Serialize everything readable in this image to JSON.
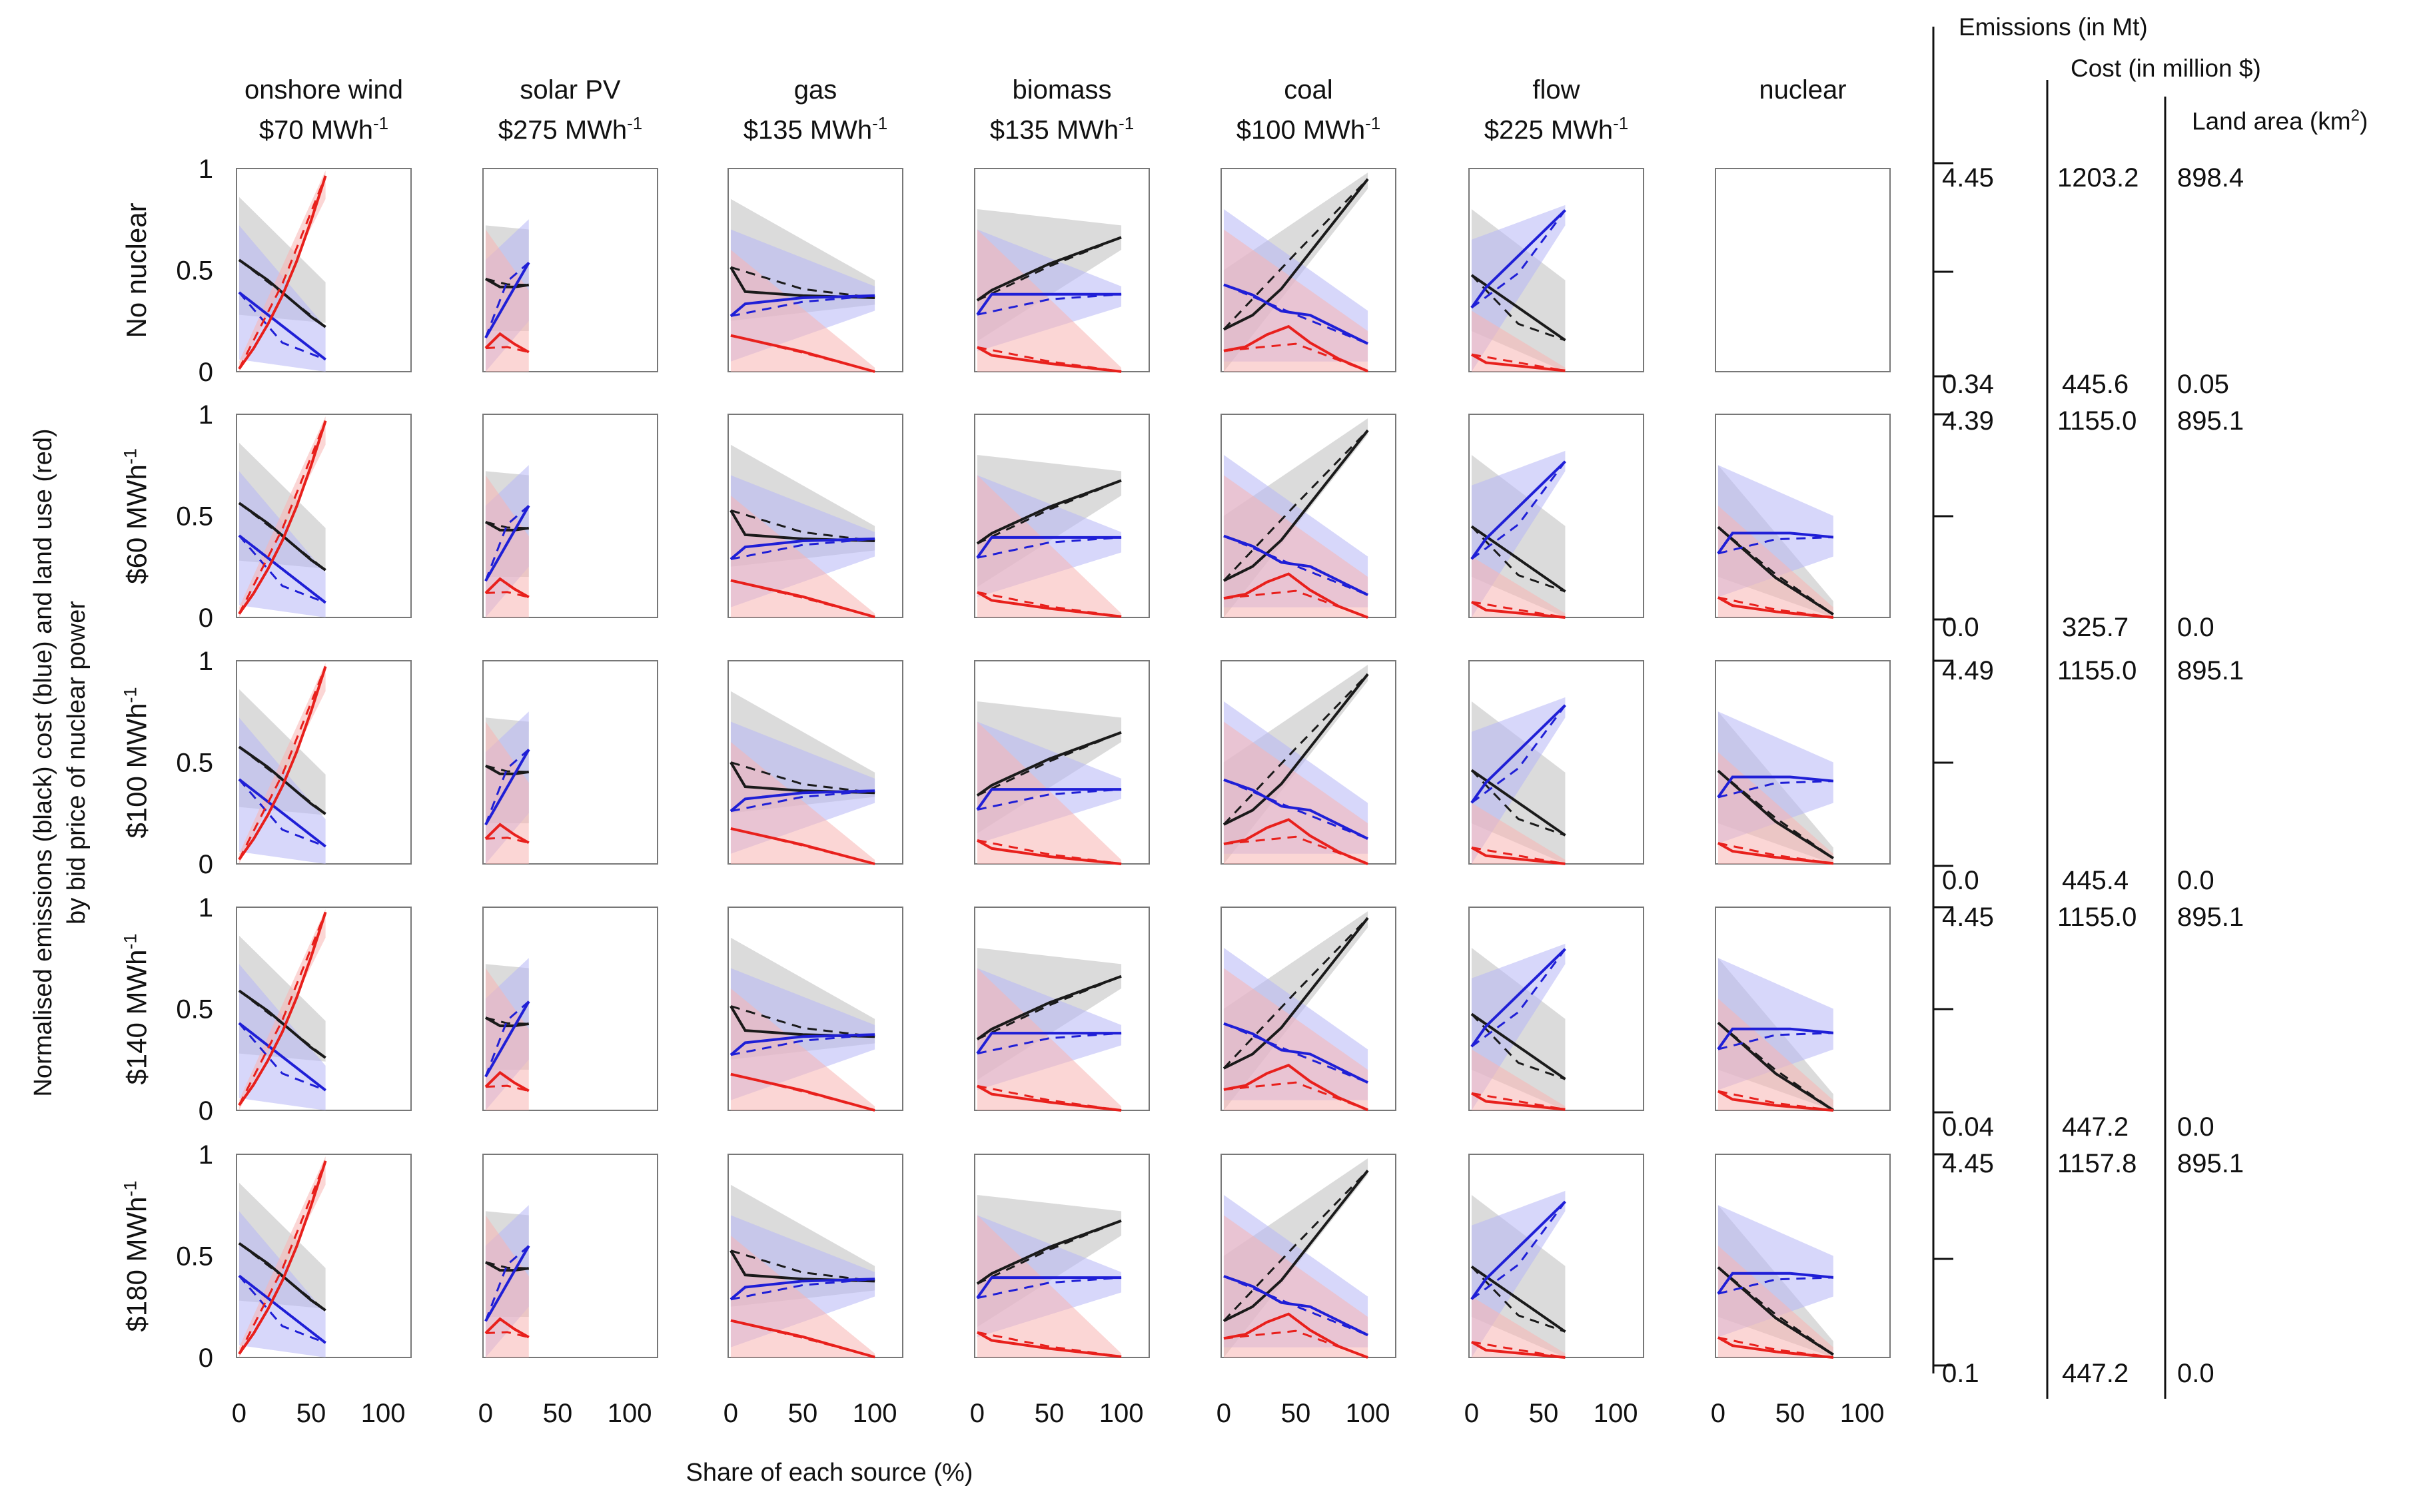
{
  "figure": {
    "y_axis_label_line1": "Normalised emissions (black) cost (blue) and land use (red)",
    "y_axis_label_line2": "by bid price of nuclear power",
    "x_axis_label": "Share of each source (%)"
  },
  "side_panel": {
    "emissions_header": "Emissions (in Mt)",
    "cost_header": "Cost (in million $)",
    "land_header_text": "Land area (km",
    "land_header_sup": "2",
    "land_header_close": ")"
  },
  "colors": {
    "emissions": "#1a1a1a",
    "cost": "#1f1fd6",
    "land": "#e8201c",
    "emissions_band": "#bdbdbd",
    "cost_band": "#b7b7f5",
    "land_band": "#f7b4b2"
  },
  "chart_data": {
    "type": "line",
    "title": "",
    "xlabel": "Share of each source (%)",
    "ylabel": "Normalised emissions (black) cost (blue) and land use (red) by bid price of nuclear power",
    "xlim": [
      0,
      100
    ],
    "ylim": [
      0,
      1
    ],
    "x_ticks": [
      "0",
      "50",
      "100"
    ],
    "y_ticks": [
      "0",
      "0.5",
      "1"
    ],
    "columns": [
      {
        "name": "onshore wind",
        "price": "$70 MWh",
        "unit_sup": "-1"
      },
      {
        "name": "solar PV",
        "price": "$275 MWh",
        "unit_sup": "-1"
      },
      {
        "name": "gas",
        "price": "$135 MWh",
        "unit_sup": "-1"
      },
      {
        "name": "biomass",
        "price": "$135 MWh",
        "unit_sup": "-1"
      },
      {
        "name": "coal",
        "price": "$100 MWh",
        "unit_sup": "-1"
      },
      {
        "name": "flow",
        "price": "$225 MWh",
        "unit_sup": "-1"
      },
      {
        "name": "nuclear",
        "price": "",
        "unit_sup": ""
      }
    ],
    "rows": [
      {
        "label": "No nuclear",
        "label_sup": "",
        "emissions_max": "4.45",
        "emissions_min": "0.34",
        "cost_max": "1203.2",
        "cost_min": "445.6",
        "land_max": "898.4",
        "land_min": "0.05"
      },
      {
        "label": "$60 MWh",
        "label_sup": "-1",
        "emissions_max": "4.39",
        "emissions_min": "0.0",
        "cost_max": "1155.0",
        "cost_min": "325.7",
        "land_max": "895.1",
        "land_min": "0.0"
      },
      {
        "label": "$100 MWh",
        "label_sup": "-1",
        "emissions_max": "4.49",
        "emissions_min": "0.0",
        "cost_max": "1155.0",
        "cost_min": "445.4",
        "land_max": "895.1",
        "land_min": "0.0"
      },
      {
        "label": "$140 MWh",
        "label_sup": "-1",
        "emissions_max": "4.45",
        "emissions_min": "0.04",
        "cost_max": "1155.0",
        "cost_min": "447.2",
        "land_max": "895.1",
        "land_min": "0.0"
      },
      {
        "label": "$180 MWh",
        "label_sup": "-1",
        "emissions_max": "4.45",
        "emissions_min": "0.1",
        "cost_max": "1157.8",
        "cost_min": "447.2",
        "land_max": "895.1",
        "land_min": "0.0"
      }
    ],
    "panels": {
      "onshore wind": {
        "emissions": {
          "x": [
            0,
            10,
            20,
            30,
            40,
            50,
            60
          ],
          "y": [
            0.57,
            0.52,
            0.47,
            0.41,
            0.35,
            0.29,
            0.24
          ]
        },
        "cost": {
          "x": [
            0,
            60
          ],
          "y": [
            0.41,
            0.08
          ]
        },
        "land": {
          "x": [
            0,
            10,
            20,
            30,
            40,
            50,
            60
          ],
          "y": [
            0.02,
            0.12,
            0.24,
            0.38,
            0.55,
            0.75,
            0.97
          ]
        },
        "emissions_band": {
          "lo": [
            0.28,
            0.24
          ],
          "hi": [
            0.86,
            0.44
          ]
        },
        "cost_band": {
          "lo": [
            0.06,
            0.0
          ],
          "hi": [
            0.72,
            0.22
          ]
        },
        "land_band": {
          "lo": [
            0.0,
            0.85
          ],
          "hi": [
            0.05,
            0.99
          ]
        }
      },
      "solar PV": {
        "emissions": {
          "x": [
            0,
            10,
            20,
            30
          ],
          "y": [
            0.47,
            0.43,
            0.43,
            0.44
          ]
        },
        "cost": {
          "x": [
            0,
            30
          ],
          "y": [
            0.18,
            0.55
          ]
        },
        "land": {
          "x": [
            0,
            10,
            20,
            30
          ],
          "y": [
            0.12,
            0.19,
            0.14,
            0.1
          ]
        },
        "emissions_band": {
          "lo": [
            0.2,
            0.2
          ],
          "hi": [
            0.72,
            0.7
          ]
        },
        "cost_band": {
          "lo": [
            0.0,
            0.25
          ],
          "hi": [
            0.55,
            0.75
          ]
        },
        "land_band": {
          "lo": [
            0.0,
            0.0
          ],
          "hi": [
            0.7,
            0.4
          ]
        }
      },
      "gas": {
        "emissions": {
          "x": [
            0,
            10,
            50,
            100
          ],
          "y": [
            0.52,
            0.4,
            0.38,
            0.37
          ]
        },
        "cost": {
          "x": [
            0,
            10,
            50,
            100
          ],
          "y": [
            0.28,
            0.34,
            0.37,
            0.38
          ]
        },
        "land": {
          "x": [
            0,
            50,
            100
          ],
          "y": [
            0.18,
            0.1,
            0.0
          ]
        },
        "emissions_band": {
          "lo": [
            0.25,
            0.33
          ],
          "hi": [
            0.85,
            0.45
          ]
        },
        "cost_band": {
          "lo": [
            0.05,
            0.3
          ],
          "hi": [
            0.7,
            0.42
          ]
        },
        "land_band": {
          "lo": [
            0.0,
            0.0
          ],
          "hi": [
            0.6,
            0.02
          ]
        }
      },
      "biomass": {
        "emissions": {
          "x": [
            0,
            10,
            50,
            100
          ],
          "y": [
            0.35,
            0.4,
            0.53,
            0.66
          ]
        },
        "cost": {
          "x": [
            0,
            10,
            50,
            100
          ],
          "y": [
            0.28,
            0.38,
            0.38,
            0.38
          ]
        },
        "land": {
          "x": [
            0,
            10,
            50,
            100
          ],
          "y": [
            0.12,
            0.08,
            0.04,
            0.0
          ]
        },
        "emissions_band": {
          "lo": [
            0.15,
            0.6
          ],
          "hi": [
            0.8,
            0.72
          ]
        },
        "cost_band": {
          "lo": [
            0.1,
            0.32
          ],
          "hi": [
            0.7,
            0.42
          ]
        },
        "land_band": {
          "lo": [
            0.0,
            0.0
          ],
          "hi": [
            0.7,
            0.02
          ]
        }
      },
      "coal": {
        "emissions": {
          "x": [
            0,
            20,
            40,
            60,
            80,
            100
          ],
          "y": [
            0.2,
            0.27,
            0.4,
            0.58,
            0.76,
            0.94
          ]
        },
        "cost": {
          "x": [
            0,
            20,
            40,
            60,
            80,
            100
          ],
          "y": [
            0.42,
            0.37,
            0.29,
            0.27,
            0.2,
            0.13
          ]
        },
        "land": {
          "x": [
            0,
            15,
            30,
            45,
            60,
            80,
            100
          ],
          "y": [
            0.1,
            0.12,
            0.18,
            0.22,
            0.14,
            0.06,
            0.0
          ]
        },
        "emissions_band": {
          "lo": [
            0.0,
            0.9
          ],
          "hi": [
            0.5,
            0.98
          ]
        },
        "cost_band": {
          "lo": [
            0.05,
            0.05
          ],
          "hi": [
            0.8,
            0.3
          ]
        },
        "land_band": {
          "lo": [
            0.0,
            0.0
          ],
          "hi": [
            0.7,
            0.2
          ]
        }
      },
      "flow": {
        "emissions": {
          "x": [
            0,
            65
          ],
          "y": [
            0.46,
            0.14
          ]
        },
        "cost": {
          "x": [
            0,
            10,
            65
          ],
          "y": [
            0.3,
            0.4,
            0.78
          ]
        },
        "land": {
          "x": [
            0,
            10,
            65
          ],
          "y": [
            0.08,
            0.04,
            0.0
          ]
        },
        "emissions_band": {
          "lo": [
            0.2,
            0.0
          ],
          "hi": [
            0.8,
            0.45
          ]
        },
        "cost_band": {
          "lo": [
            0.0,
            0.72
          ],
          "hi": [
            0.65,
            0.82
          ]
        },
        "land_band": {
          "lo": [
            0.0,
            0.0
          ],
          "hi": [
            0.3,
            0.02
          ]
        }
      },
      "nuclear": {
        "emissions": {
          "x": [
            0,
            40,
            80
          ],
          "y": [
            0.45,
            0.2,
            0.02
          ]
        },
        "cost": {
          "x": [
            0,
            10,
            50,
            80
          ],
          "y": [
            0.32,
            0.42,
            0.42,
            0.4
          ]
        },
        "land": {
          "x": [
            0,
            10,
            40,
            80
          ],
          "y": [
            0.1,
            0.06,
            0.03,
            0.0
          ]
        },
        "emissions_band": {
          "lo": [
            0.2,
            0.0
          ],
          "hi": [
            0.75,
            0.08
          ]
        },
        "cost_band": {
          "lo": [
            0.1,
            0.3
          ],
          "hi": [
            0.75,
            0.5
          ]
        },
        "land_band": {
          "lo": [
            0.0,
            0.0
          ],
          "hi": [
            0.55,
            0.05
          ]
        }
      }
    }
  }
}
